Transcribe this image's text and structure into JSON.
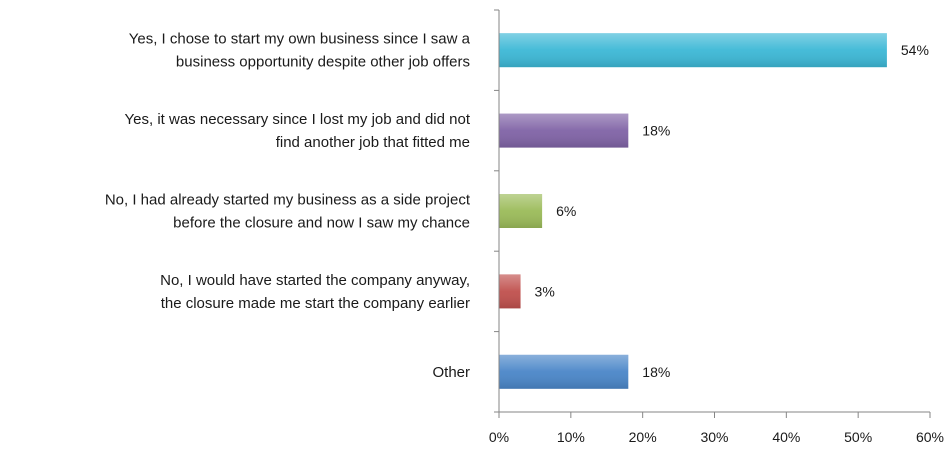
{
  "chart_data": {
    "type": "bar",
    "orientation": "horizontal",
    "categories": [
      [
        "Yes, I chose to start my own business since I saw a",
        "business opportunity despite other job offers"
      ],
      [
        "Yes, it was necessary since I lost my job and did not",
        "find another job that fitted me"
      ],
      [
        "No, I had already started my business as a side project",
        "before the closure and now I saw my chance"
      ],
      [
        "No, I would have started the company anyway,",
        "the closure made me start the company earlier"
      ],
      [
        "Other"
      ]
    ],
    "values": [
      54,
      18,
      6,
      3,
      18
    ],
    "data_labels": [
      "54%",
      "18%",
      "6%",
      "3%",
      "18%"
    ],
    "colors": [
      "#3cb8d6",
      "#8063a6",
      "#9bbb59",
      "#c0504d",
      "#4a86c8"
    ],
    "xlim": [
      0,
      60
    ],
    "xticks": [
      0,
      10,
      20,
      30,
      40,
      50,
      60
    ],
    "xtick_labels": [
      "0%",
      "10%",
      "20%",
      "30%",
      "40%",
      "50%",
      "60%"
    ],
    "grid": false,
    "legend": "none"
  }
}
